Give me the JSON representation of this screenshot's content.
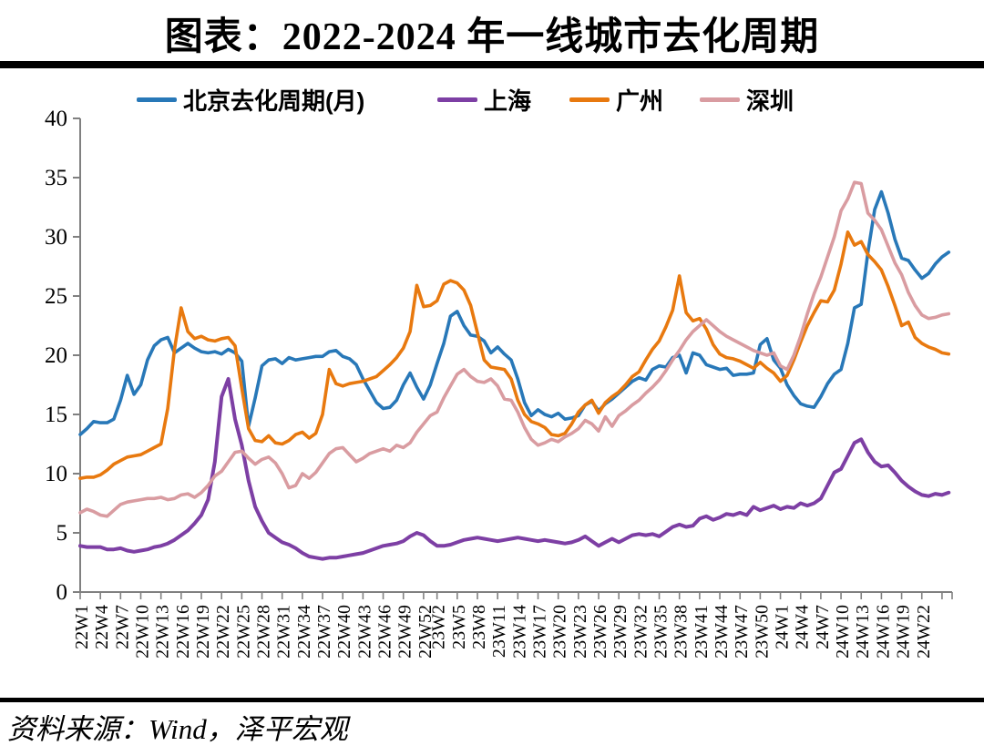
{
  "page": {
    "title": "图表：2022-2024 年一线城市去化周期",
    "source": "资料来源：Wind，泽平宏观"
  },
  "chart_data": {
    "type": "line",
    "title": "图表：2022-2024 年一线城市去化周期",
    "xlabel": "",
    "ylabel": "",
    "grid": false,
    "legend_position": "top",
    "y_axis": {
      "min": 0,
      "max": 40,
      "tick_step": 5,
      "ticks": [
        0,
        5,
        10,
        15,
        20,
        25,
        30,
        35,
        40
      ]
    },
    "x_axis": {
      "unit": "week",
      "labels": [
        "22W1",
        "22W4",
        "22W7",
        "22W10",
        "22W13",
        "22W16",
        "22W19",
        "22W22",
        "22W25",
        "22W28",
        "22W31",
        "22W34",
        "22W37",
        "22W40",
        "22W43",
        "22W46",
        "22W49",
        "22W52",
        "23W2",
        "23W5",
        "23W8",
        "23W11",
        "23W14",
        "23W17",
        "23W20",
        "23W23",
        "23W26",
        "23W29",
        "23W32",
        "23W35",
        "23W38",
        "23W41",
        "23W44",
        "23W47",
        "23W50",
        "24W1",
        "24W4",
        "24W7",
        "24W10",
        "24W13",
        "24W16",
        "24W19",
        "24W22"
      ],
      "label_week_indices": [
        0,
        3,
        6,
        9,
        12,
        15,
        18,
        21,
        24,
        27,
        30,
        33,
        36,
        39,
        42,
        45,
        48,
        51,
        53,
        56,
        59,
        62,
        65,
        68,
        71,
        74,
        77,
        80,
        83,
        86,
        89,
        92,
        95,
        98,
        101,
        104,
        107,
        110,
        113,
        116,
        119,
        122,
        125
      ],
      "total_weeks": 130
    },
    "series": [
      {
        "name": "北京去化周期(月)",
        "color": "#2878B8",
        "width": 3.6,
        "values": [
          13.3,
          13.8,
          14.4,
          14.3,
          14.3,
          14.6,
          16.2,
          18.3,
          16.7,
          17.5,
          19.6,
          20.8,
          21.3,
          21.5,
          20.2,
          20.6,
          21.0,
          20.6,
          20.3,
          20.2,
          20.3,
          20.1,
          20.5,
          20.2,
          19.5,
          14.0,
          16.4,
          19.1,
          19.6,
          19.7,
          19.3,
          19.8,
          19.6,
          19.7,
          19.8,
          19.9,
          19.9,
          20.3,
          20.4,
          19.9,
          19.7,
          19.2,
          18.0,
          17.0,
          16.0,
          15.5,
          15.6,
          16.2,
          17.5,
          18.5,
          17.3,
          16.3,
          17.5,
          19.3,
          21.0,
          23.3,
          23.7,
          22.5,
          21.7,
          21.6,
          21.2,
          20.2,
          20.7,
          20.1,
          19.6,
          18.0,
          16.0,
          14.9,
          15.4,
          15.0,
          14.8,
          15.1,
          14.6,
          14.7,
          14.9,
          15.8,
          16.1,
          15.3,
          15.9,
          16.3,
          16.8,
          17.3,
          17.8,
          18.1,
          17.9,
          18.8,
          19.1,
          19.0,
          19.8,
          20.0,
          18.5,
          20.2,
          20.0,
          19.2,
          19.0,
          18.8,
          18.9,
          18.3,
          18.4,
          18.4,
          18.5,
          20.9,
          21.4,
          19.6,
          18.9,
          17.5,
          16.6,
          15.9,
          15.7,
          15.6,
          16.5,
          17.6,
          18.4,
          18.8,
          21.0,
          24.0,
          24.3,
          28.7,
          32.3,
          33.8,
          32.0,
          29.8,
          28.2,
          28.0,
          27.2,
          26.5,
          26.9,
          27.7,
          28.3,
          28.7
        ]
      },
      {
        "name": "上海",
        "color": "#7D3FA4",
        "width": 4.0,
        "values": [
          3.9,
          3.8,
          3.8,
          3.8,
          3.6,
          3.6,
          3.7,
          3.5,
          3.4,
          3.5,
          3.6,
          3.8,
          3.9,
          4.1,
          4.4,
          4.8,
          5.2,
          5.8,
          6.5,
          7.8,
          11.0,
          16.5,
          18.0,
          14.6,
          12.4,
          9.4,
          7.2,
          6.0,
          5.0,
          4.6,
          4.2,
          4.0,
          3.7,
          3.3,
          3.0,
          2.9,
          2.8,
          2.9,
          2.9,
          3.0,
          3.1,
          3.2,
          3.3,
          3.5,
          3.7,
          3.9,
          4.0,
          4.1,
          4.3,
          4.7,
          5.0,
          4.8,
          4.3,
          3.9,
          3.9,
          4.0,
          4.2,
          4.4,
          4.5,
          4.6,
          4.5,
          4.4,
          4.3,
          4.4,
          4.5,
          4.6,
          4.5,
          4.4,
          4.3,
          4.4,
          4.3,
          4.2,
          4.1,
          4.2,
          4.4,
          4.7,
          4.3,
          3.9,
          4.2,
          4.5,
          4.2,
          4.5,
          4.8,
          4.9,
          4.8,
          4.9,
          4.7,
          5.1,
          5.5,
          5.7,
          5.5,
          5.6,
          6.2,
          6.4,
          6.1,
          6.3,
          6.6,
          6.5,
          6.7,
          6.5,
          7.2,
          6.9,
          7.1,
          7.3,
          7.0,
          7.2,
          7.1,
          7.5,
          7.3,
          7.5,
          7.9,
          9.0,
          10.1,
          10.4,
          11.5,
          12.6,
          12.9,
          11.8,
          11.0,
          10.6,
          10.7,
          10.1,
          9.4,
          8.9,
          8.5,
          8.2,
          8.1,
          8.3,
          8.2,
          8.4
        ]
      },
      {
        "name": "广州",
        "color": "#E8790F",
        "width": 3.6,
        "values": [
          9.6,
          9.7,
          9.7,
          9.9,
          10.3,
          10.8,
          11.1,
          11.4,
          11.5,
          11.6,
          11.9,
          12.2,
          12.5,
          15.5,
          20.5,
          24.0,
          22.0,
          21.4,
          21.6,
          21.3,
          21.2,
          21.4,
          21.5,
          20.8,
          17.2,
          13.8,
          12.8,
          12.7,
          13.2,
          12.6,
          12.5,
          12.8,
          13.3,
          13.5,
          13.0,
          13.4,
          15.0,
          18.8,
          17.6,
          17.4,
          17.6,
          17.7,
          17.8,
          18.0,
          18.2,
          18.7,
          19.2,
          19.8,
          20.6,
          22.0,
          25.9,
          24.1,
          24.2,
          24.6,
          26.0,
          26.3,
          26.1,
          25.5,
          24.2,
          21.9,
          19.6,
          19.0,
          18.9,
          18.8,
          18.0,
          16.2,
          15.0,
          14.4,
          14.2,
          13.9,
          13.3,
          13.2,
          13.4,
          14.2,
          15.2,
          15.8,
          16.2,
          15.1,
          16.0,
          16.5,
          16.9,
          17.5,
          18.2,
          18.6,
          19.6,
          20.5,
          21.2,
          22.4,
          23.8,
          26.7,
          23.6,
          22.9,
          23.1,
          22.2,
          20.9,
          20.1,
          19.8,
          19.7,
          19.5,
          19.2,
          18.9,
          19.4,
          18.9,
          18.5,
          17.8,
          18.3,
          19.6,
          21.1,
          22.5,
          23.6,
          24.6,
          24.5,
          25.5,
          27.7,
          30.4,
          29.3,
          29.6,
          28.5,
          27.9,
          27.2,
          25.8,
          24.2,
          22.5,
          22.8,
          21.5,
          21.0,
          20.7,
          20.5,
          20.2,
          20.1
        ]
      },
      {
        "name": "深圳",
        "color": "#D99CA1",
        "width": 3.6,
        "values": [
          6.7,
          7.0,
          6.8,
          6.5,
          6.4,
          6.9,
          7.4,
          7.6,
          7.7,
          7.8,
          7.9,
          7.9,
          8.0,
          7.8,
          7.9,
          8.2,
          8.3,
          8.0,
          8.4,
          9.0,
          9.8,
          10.2,
          11.0,
          11.8,
          11.9,
          11.3,
          10.8,
          11.2,
          11.4,
          10.9,
          10.0,
          8.8,
          9.0,
          10.0,
          9.6,
          10.1,
          10.9,
          11.7,
          12.1,
          12.2,
          11.6,
          11.0,
          11.3,
          11.7,
          11.9,
          12.1,
          11.9,
          12.4,
          12.2,
          12.6,
          13.5,
          14.2,
          14.9,
          15.2,
          16.4,
          17.4,
          18.4,
          18.8,
          18.2,
          17.8,
          17.7,
          18.0,
          17.4,
          16.3,
          16.2,
          15.2,
          13.9,
          12.9,
          12.4,
          12.6,
          12.9,
          12.7,
          13.1,
          13.4,
          13.8,
          14.5,
          14.2,
          13.6,
          14.8,
          14.0,
          14.9,
          15.3,
          15.8,
          16.2,
          16.8,
          17.3,
          17.9,
          18.7,
          19.6,
          20.4,
          21.3,
          22.0,
          22.5,
          23.0,
          22.5,
          22.0,
          21.6,
          21.3,
          21.0,
          20.7,
          20.4,
          20.2,
          20.0,
          20.2,
          19.1,
          18.8,
          20.0,
          21.6,
          23.5,
          25.2,
          26.6,
          28.3,
          30.0,
          32.2,
          33.2,
          34.6,
          34.5,
          32.0,
          31.4,
          30.6,
          29.2,
          27.8,
          26.8,
          25.3,
          24.2,
          23.4,
          23.1,
          23.2,
          23.4,
          23.5
        ]
      }
    ]
  }
}
